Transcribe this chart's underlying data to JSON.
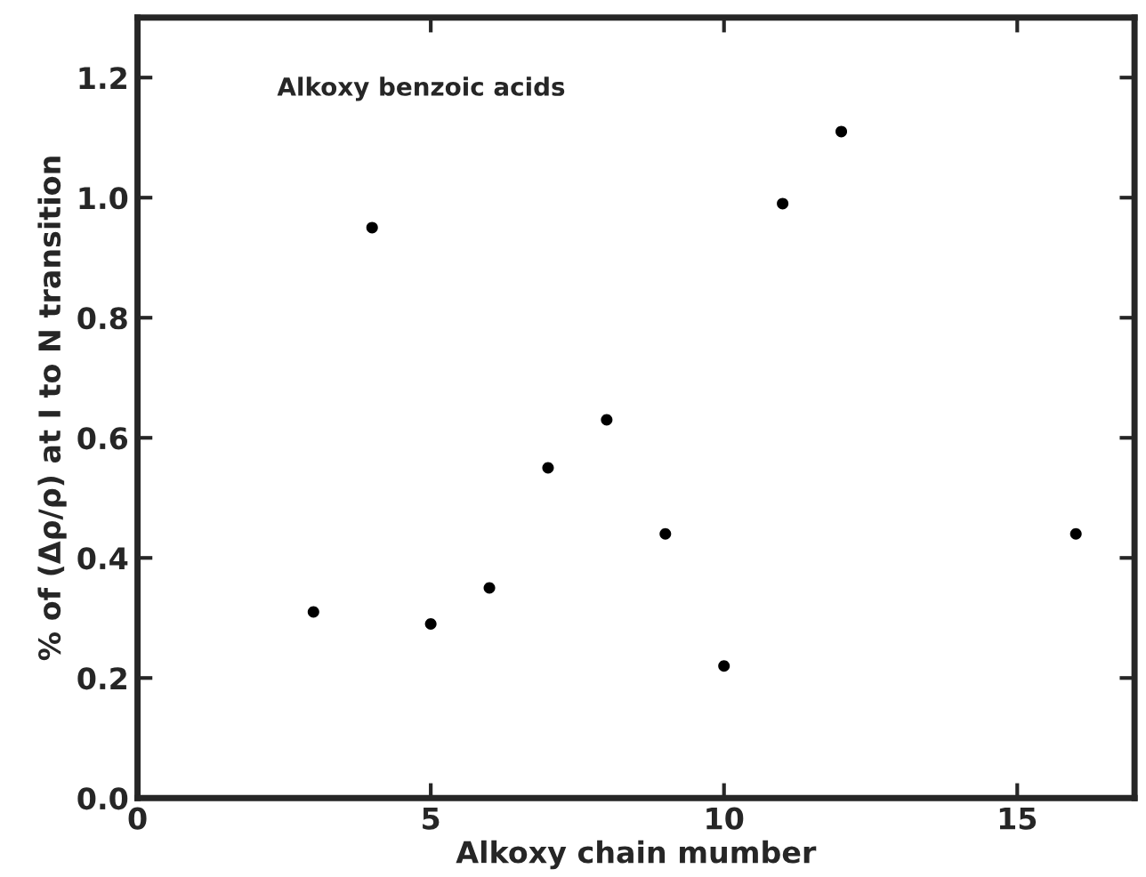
{
  "chart_data": {
    "type": "scatter",
    "xlabel": "Alkoxy chain mumber",
    "ylabel": "% of (Δρ/ρ) at I to N transition",
    "annotations": [
      "Alkoxy benzoic acids"
    ],
    "x": [
      3,
      4,
      5,
      6,
      7,
      8,
      9,
      10,
      11,
      12,
      16
    ],
    "series": [
      {
        "color": "#000000",
        "values": [
          0.31,
          0.95,
          0.29,
          0.35,
          0.55,
          0.63,
          0.44,
          0.22,
          0.99,
          1.11,
          0.44
        ]
      }
    ],
    "xlim": [
      0,
      17
    ],
    "xticks": [
      0,
      5,
      10,
      15
    ],
    "ylim": [
      0,
      1.3
    ],
    "yticks": [
      {
        "value": 0,
        "label": "0.0"
      },
      {
        "value": 0.2,
        "label": "0.2"
      },
      {
        "value": 0.4,
        "label": "0.4"
      },
      {
        "value": 0.6,
        "label": "0.6"
      },
      {
        "value": 0.8,
        "label": "0.8"
      },
      {
        "value": 1.0,
        "label": "1.0"
      },
      {
        "value": 1.2,
        "label": "1.2"
      }
    ],
    "marker": "circle",
    "grid": false
  }
}
